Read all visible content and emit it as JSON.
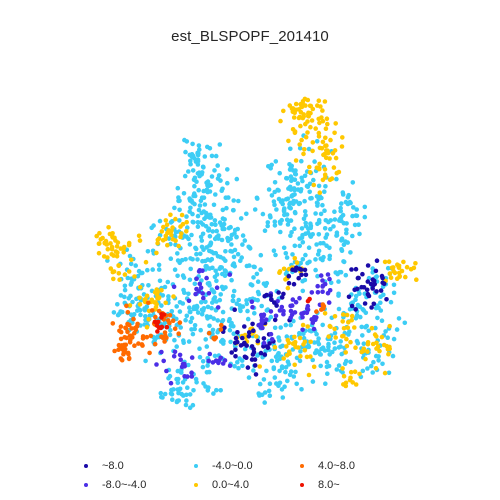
{
  "map": {
    "title": "est_BLSPOPF_201410"
  },
  "legend": {
    "items": [
      {
        "label": "~8.0",
        "color": "#1a0aa8"
      },
      {
        "label": "-8.0~-4.0",
        "color": "#4b2ee6"
      },
      {
        "label": "-4.0~0.0",
        "color": "#3ccdf5"
      },
      {
        "label": "0.0~4.0",
        "color": "#ffc800"
      },
      {
        "label": "4.0~8.0",
        "color": "#ff6a00"
      },
      {
        "label": "8.0~",
        "color": "#ee1100"
      }
    ]
  }
}
